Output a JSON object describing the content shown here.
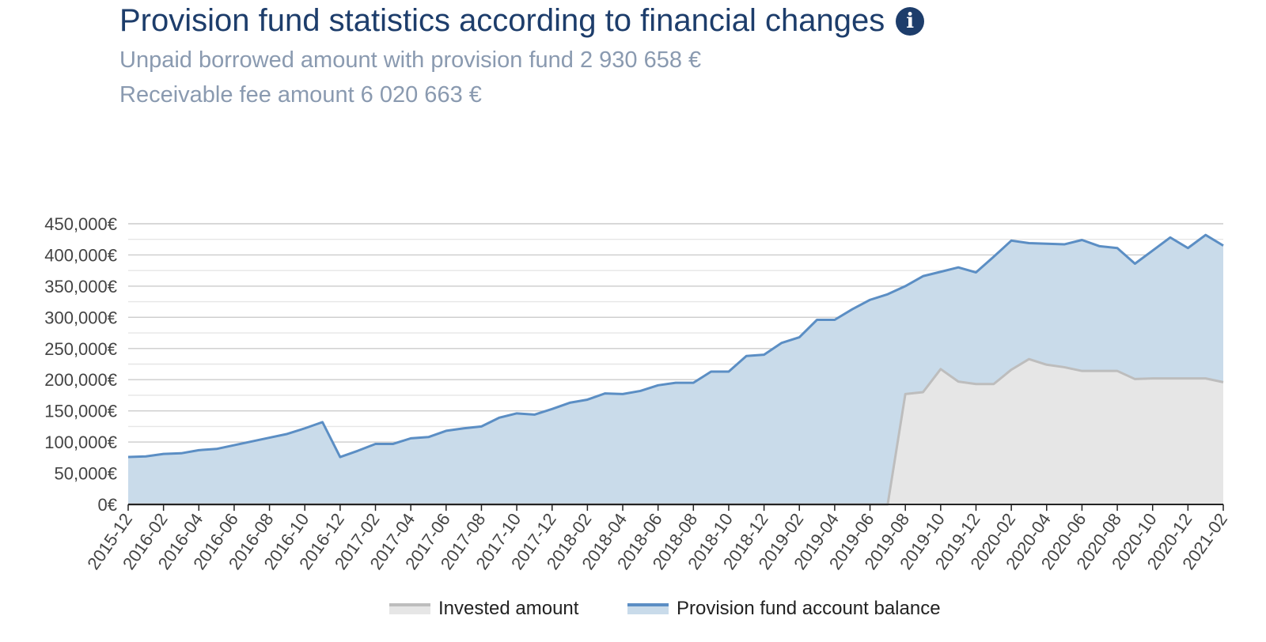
{
  "header": {
    "title": "Provision fund statistics according to financial changes",
    "info_icon": "info-circle-icon",
    "unpaid_line": "Unpaid borrowed amount with provision fund 2 930 658 €",
    "fee_line": "Receivable fee amount 6 020 663 €"
  },
  "legend": {
    "invested": "Invested amount",
    "provision": "Provision fund account balance"
  },
  "colors": {
    "provision_line": "#5b8ec4",
    "provision_fill": "#c9dbea",
    "invested_line": "#bdbdbd",
    "invested_fill": "#e6e6e6",
    "grid": "#cccccc",
    "title": "#1d3d6b",
    "subtitle": "#8a9ab0"
  },
  "chart_data": {
    "type": "area",
    "title": "",
    "xlabel": "",
    "ylabel": "",
    "ylim": [
      0,
      450000
    ],
    "yticks": [
      "0€",
      "50,000€",
      "100,000€",
      "150,000€",
      "200,000€",
      "250,000€",
      "300,000€",
      "350,000€",
      "400,000€",
      "450,000€"
    ],
    "xtick_labels": [
      "2015-12",
      "2016-02",
      "2016-04",
      "2016-06",
      "2016-08",
      "2016-10",
      "2016-12",
      "2017-02",
      "2017-04",
      "2017-06",
      "2017-08",
      "2017-10",
      "2017-12",
      "2018-02",
      "2018-04",
      "2018-06",
      "2018-08",
      "2018-10",
      "2018-12",
      "2019-02",
      "2019-04",
      "2019-06",
      "2019-08",
      "2019-10",
      "2019-12",
      "2020-02",
      "2020-04",
      "2020-06",
      "2020-08",
      "2020-10",
      "2020-12",
      "2021-02"
    ],
    "x": [
      "2015-12",
      "2016-01",
      "2016-02",
      "2016-03",
      "2016-04",
      "2016-05",
      "2016-06",
      "2016-07",
      "2016-08",
      "2016-09",
      "2016-10",
      "2016-11",
      "2016-12",
      "2017-01",
      "2017-02",
      "2017-03",
      "2017-04",
      "2017-05",
      "2017-06",
      "2017-07",
      "2017-08",
      "2017-09",
      "2017-10",
      "2017-11",
      "2017-12",
      "2018-01",
      "2018-02",
      "2018-03",
      "2018-04",
      "2018-05",
      "2018-06",
      "2018-07",
      "2018-08",
      "2018-09",
      "2018-10",
      "2018-11",
      "2018-12",
      "2019-01",
      "2019-02",
      "2019-03",
      "2019-04",
      "2019-05",
      "2019-06",
      "2019-07",
      "2019-08",
      "2019-09",
      "2019-10",
      "2019-11",
      "2019-12",
      "2020-01",
      "2020-02",
      "2020-03",
      "2020-04",
      "2020-05",
      "2020-06",
      "2020-07",
      "2020-08",
      "2020-09",
      "2020-10",
      "2020-11",
      "2020-12",
      "2021-01",
      "2021-02"
    ],
    "legend_position": "bottom",
    "series": [
      {
        "name": "Provision fund account balance",
        "values": [
          76000,
          77000,
          81000,
          82000,
          87000,
          89000,
          95000,
          101000,
          107000,
          113000,
          122000,
          132000,
          76000,
          86000,
          97000,
          97000,
          106000,
          108000,
          118000,
          122000,
          125000,
          139000,
          146000,
          144000,
          153000,
          163000,
          168000,
          178000,
          177000,
          182000,
          191000,
          195000,
          195000,
          213000,
          213000,
          238000,
          240000,
          259000,
          268000,
          296000,
          296000,
          313000,
          328000,
          337000,
          350000,
          366000,
          373000,
          380000,
          372000,
          397000,
          423000,
          419000,
          418000,
          417000,
          424000,
          414000,
          411000,
          386000,
          407000,
          428000,
          411000,
          432000,
          415000
        ]
      },
      {
        "name": "Invested amount",
        "values": [
          0,
          0,
          0,
          0,
          0,
          0,
          0,
          0,
          0,
          0,
          0,
          0,
          0,
          0,
          0,
          0,
          0,
          0,
          0,
          0,
          0,
          0,
          0,
          0,
          0,
          0,
          0,
          0,
          0,
          0,
          0,
          0,
          0,
          0,
          0,
          0,
          0,
          0,
          0,
          0,
          0,
          0,
          0,
          0,
          177000,
          180000,
          217000,
          197000,
          193000,
          193000,
          216000,
          233000,
          224000,
          220000,
          214000,
          214000,
          214000,
          201000,
          202000,
          202000,
          202000,
          202000,
          196000
        ]
      }
    ]
  }
}
